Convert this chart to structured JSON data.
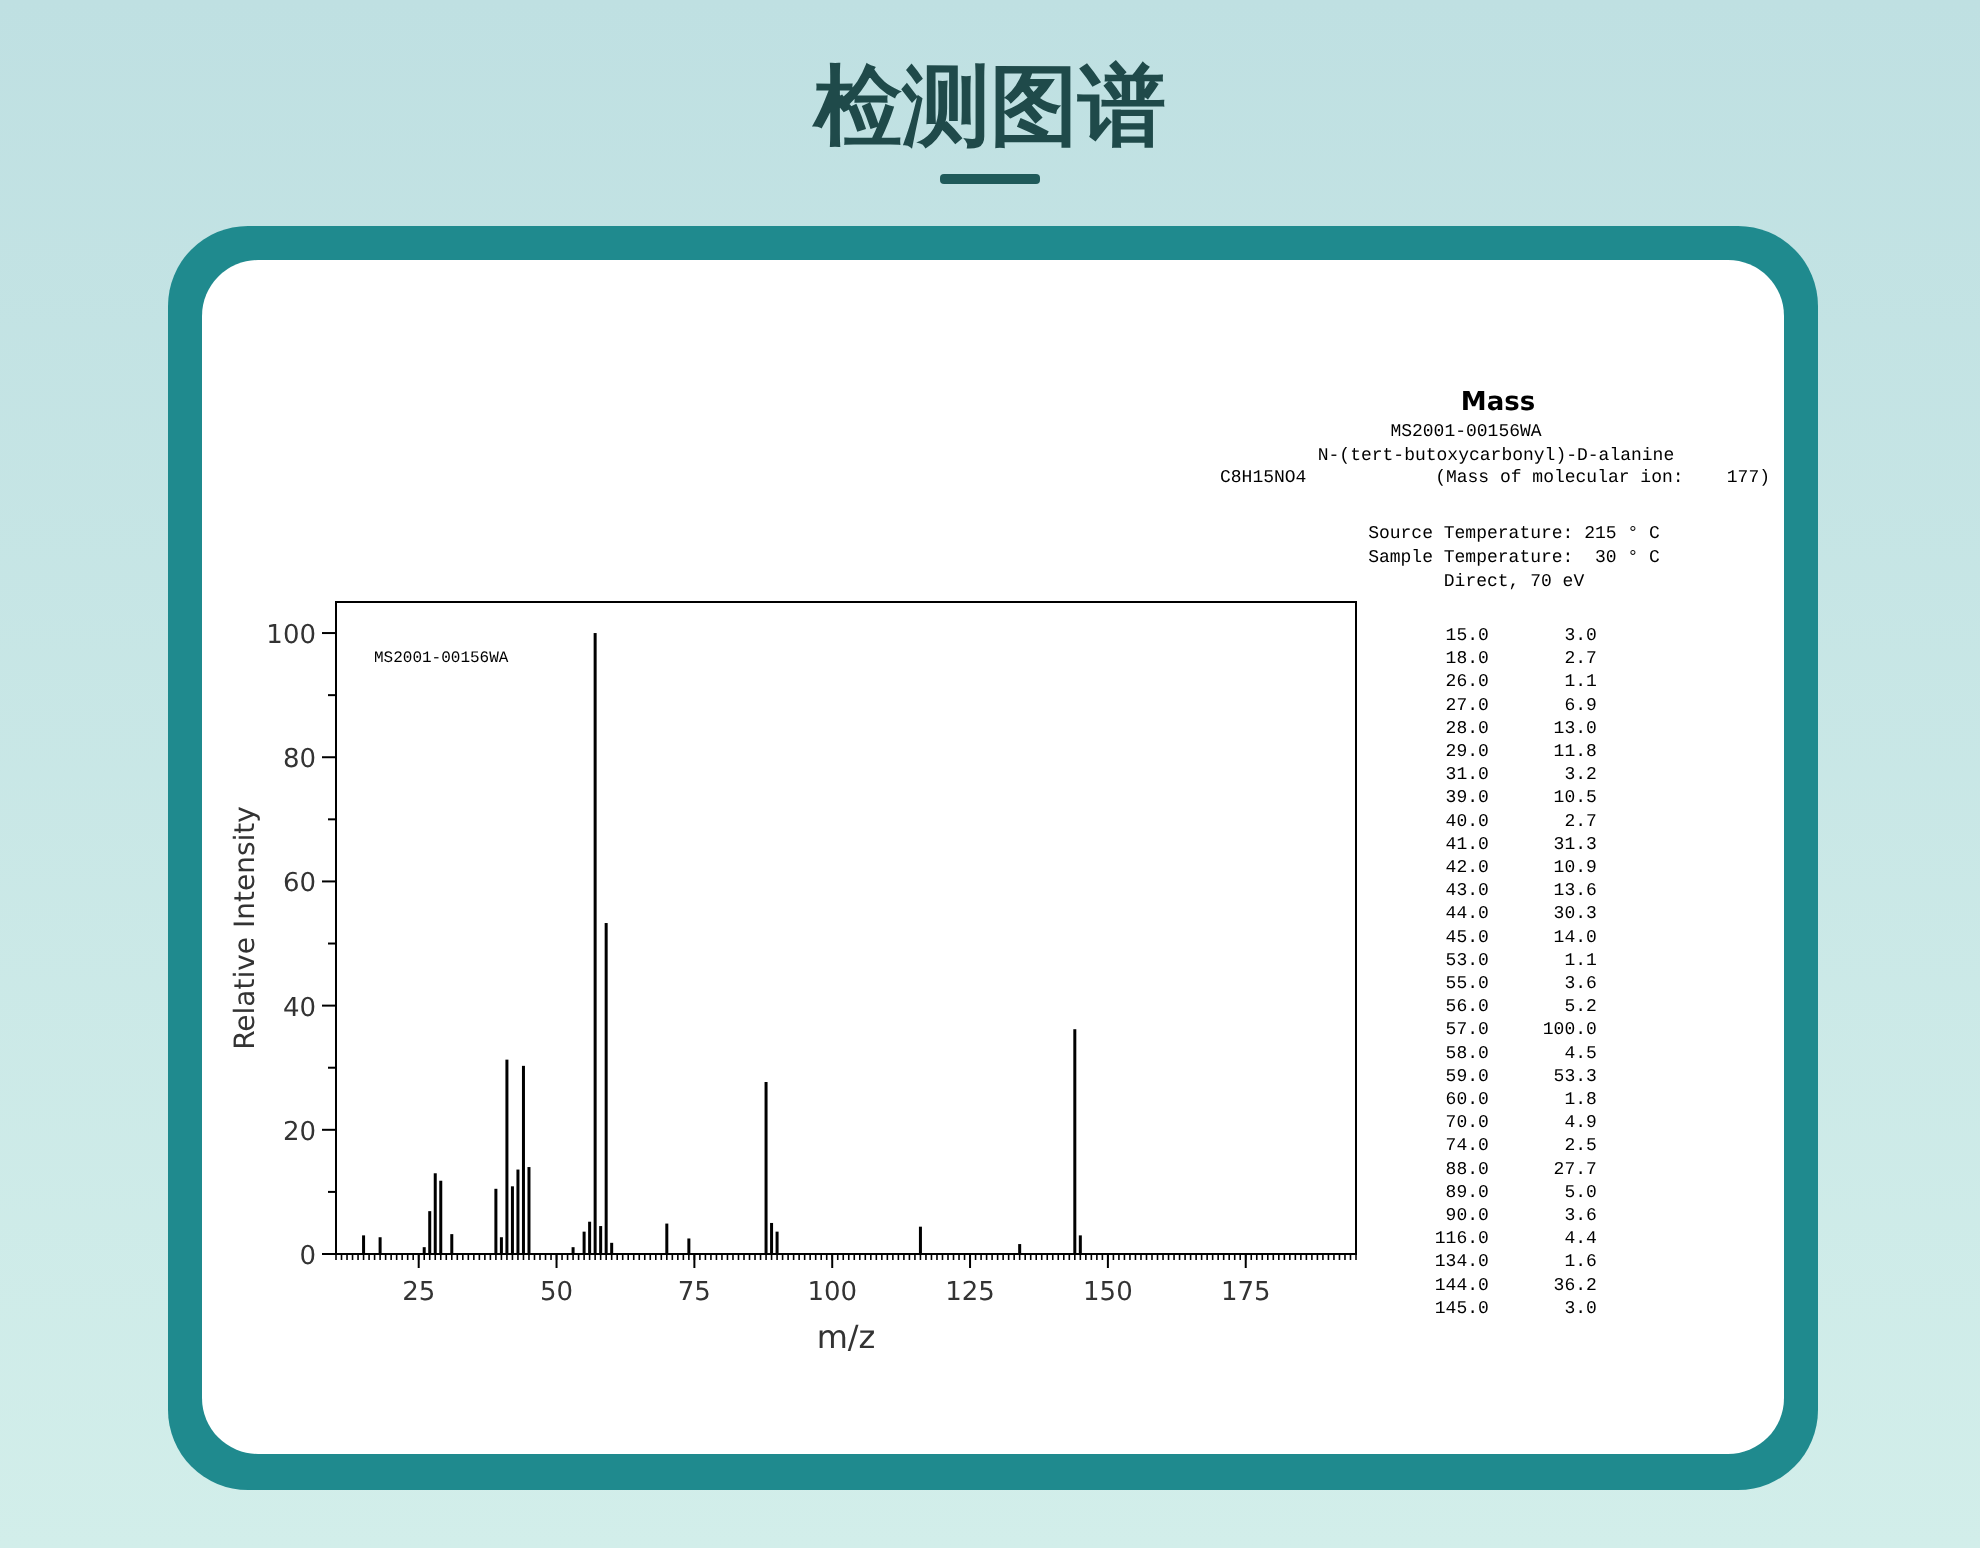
{
  "chart_data": {
    "type": "bar",
    "title": "检测图谱",
    "subtitle": "Mass",
    "xlabel": "m/z",
    "ylabel": "Relative Intensity",
    "annotations": [
      "MS2001-00156WA",
      "N-(tert-butoxycarbonyl)-D-alanine",
      "C8H15NO4",
      "(Mass of molecular ion:    177)",
      "Source Temperature: 215 ° C",
      "Sample Temperature:  30 ° C",
      "Direct, 70 eV",
      "MS2001-00156WA",
      "  15.0       3.0",
      "  18.0       2.7",
      "  26.0       1.1",
      "  27.0       6.9",
      "  28.0      13.0",
      "  29.0      11.8",
      "  31.0       3.2",
      "  39.0      10.5",
      "  40.0       2.7",
      "  41.0      31.3",
      "  42.0      10.9",
      "  43.0      13.6",
      "  44.0      30.3",
      "  45.0      14.0",
      "  53.0       1.1",
      "  55.0       3.6",
      "  56.0       5.2",
      "  57.0     100.0",
      "  58.0       4.5",
      "  59.0      53.3",
      "  60.0       1.8",
      "  70.0       4.9",
      "  74.0       2.5",
      "  88.0      27.7",
      "  89.0       5.0",
      "  90.0       3.6",
      " 116.0       4.4",
      " 134.0       1.6",
      " 144.0      36.2",
      " 145.0       3.0"
    ],
    "x": [
      15,
      18,
      26,
      27,
      28,
      29,
      31,
      39,
      40,
      41,
      42,
      43,
      44,
      45,
      53,
      55,
      56,
      57,
      58,
      59,
      60,
      70,
      74,
      88,
      89,
      90,
      116,
      134,
      144,
      145
    ],
    "values": [
      3.0,
      2.7,
      1.1,
      6.9,
      13.0,
      11.8,
      3.2,
      10.5,
      2.7,
      31.3,
      10.9,
      13.6,
      30.3,
      14.0,
      1.1,
      3.6,
      5.2,
      100.0,
      4.5,
      53.3,
      1.8,
      4.9,
      2.5,
      27.7,
      5.0,
      3.6,
      4.4,
      1.6,
      36.2,
      3.0
    ],
    "color": "#000000",
    "xlim": [
      10,
      195
    ],
    "ylim": [
      0,
      105
    ],
    "xticks": [
      25,
      50,
      75,
      100,
      125,
      150,
      175
    ],
    "yticks": [
      0,
      {
        "value": 10,
        "label": null
      },
      20,
      {
        "value": 30,
        "label": null
      },
      40,
      {
        "value": 50,
        "label": null
      },
      60,
      {
        "value": 70,
        "label": null
      },
      80,
      {
        "value": 90,
        "label": null
      },
      100
    ]
  }
}
